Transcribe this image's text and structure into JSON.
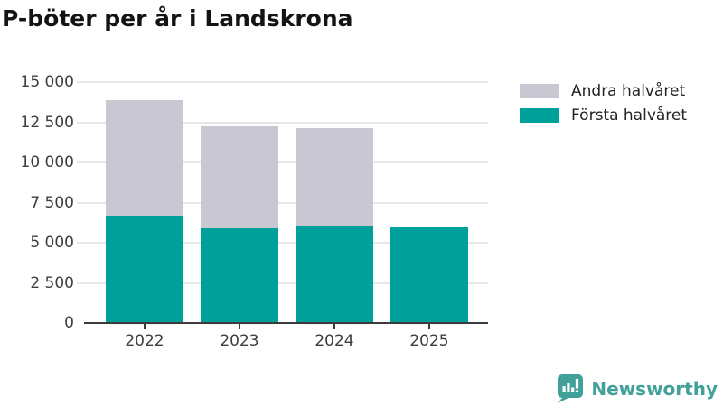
{
  "title": "P-böter per år i Landskrona",
  "legend": [
    {
      "label": "Andra halvåret",
      "color": "#c9c7d1"
    },
    {
      "label": "Första halvåret",
      "color": "#00a09a"
    }
  ],
  "chart_data": {
    "type": "bar",
    "stacked": true,
    "title": "P-böter per år i Landskrona",
    "categories": [
      "2022",
      "2023",
      "2024",
      "2025"
    ],
    "series": [
      {
        "name": "Första halvåret",
        "color": "#00a09a",
        "values": [
          6700,
          5900,
          6000,
          5950
        ]
      },
      {
        "name": "Andra halvåret",
        "color": "#c9c7d1",
        "values": [
          7200,
          6350,
          6150,
          0
        ]
      }
    ],
    "totals": [
      13900,
      12250,
      12150,
      5950
    ],
    "xlabel": "",
    "ylabel": "",
    "ylim": [
      0,
      15000
    ],
    "ytick_step": 2500,
    "ytick_labels": [
      "0",
      "2 500",
      "5 000",
      "7 500",
      "10 000",
      "12 500",
      "15 000"
    ],
    "grid": true,
    "legend_position": "top-right"
  },
  "branding": {
    "name": "Newsworthy",
    "icon": "bar-chart-speech-bubble-icon",
    "color": "#41a09a"
  },
  "colors": {
    "background": "#ffffff",
    "gridline": "#e7e7e7",
    "axis": "#3b3b3b",
    "tick_label": "#3d3d3d",
    "title_text": "#141414"
  }
}
